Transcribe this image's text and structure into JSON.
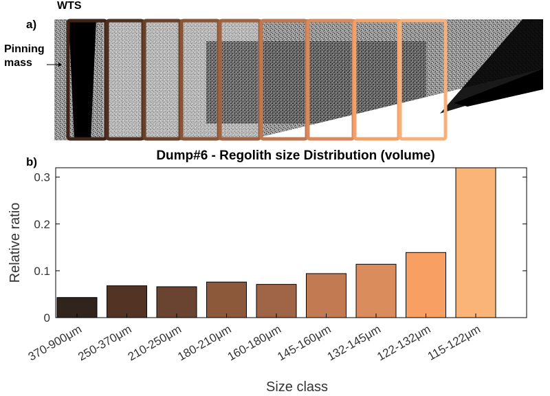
{
  "panel_a": {
    "panel_label": "a)",
    "annotations": [
      "WTS",
      "Pinning mass"
    ],
    "window_colors": [
      "#3d2416",
      "#4f3020",
      "#6a4028",
      "#8a5535",
      "#a06240",
      "#c07850",
      "#d88a5e",
      "#f3a16a",
      "#f8b07a"
    ]
  },
  "panel_b": {
    "panel_label": "b)"
  },
  "chart_data": {
    "type": "bar",
    "title": "Dump#6 - Regolith size Distribution (volume)",
    "xlabel": "Size class",
    "ylabel": "Relative ratio",
    "ylim": [
      0,
      0.32
    ],
    "yticks": [
      0,
      0.1,
      0.2,
      0.3
    ],
    "ytick_labels": [
      "0",
      "0.1",
      "0.2",
      "0.3"
    ],
    "grid": false,
    "categories": [
      "370-900μm",
      "250-370μm",
      "210-250μm",
      "180-210μm",
      "160-180μm",
      "145-160μm",
      "132-145μm",
      "122-132μm",
      "115-122μm"
    ],
    "values": [
      0.043,
      0.068,
      0.066,
      0.076,
      0.071,
      0.094,
      0.114,
      0.139,
      0.33
    ],
    "colors": [
      "#31241d",
      "#533424",
      "#6a4430",
      "#8c5a3a",
      "#a06447",
      "#c17a51",
      "#db8c5c",
      "#f89f63",
      "#fbb477"
    ]
  }
}
